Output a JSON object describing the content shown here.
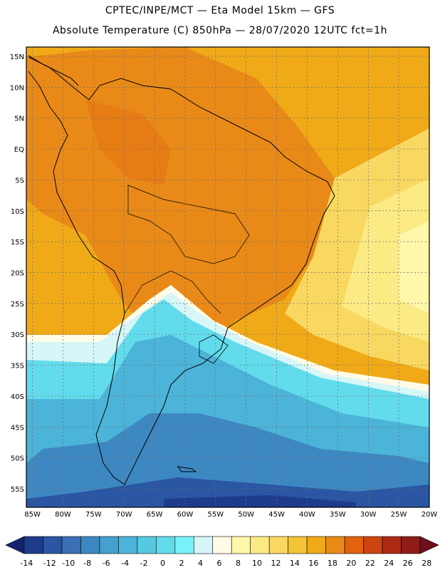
{
  "header": {
    "line1": "CPTEC/INPE/MCT —  Eta Model 15km — GFS",
    "line2": "Absolute Temperature (C) 850hPa — 28/07/2020 12UTC fct=1h"
  },
  "map": {
    "lat_labels": [
      "15N",
      "10N",
      "5N",
      "EQ",
      "5S",
      "10S",
      "15S",
      "20S",
      "25S",
      "30S",
      "35S",
      "40S",
      "45S",
      "50S",
      "55S"
    ],
    "lon_labels": [
      "85W",
      "80W",
      "75W",
      "70W",
      "65W",
      "60W",
      "55W",
      "50W",
      "45W",
      "40W",
      "35W",
      "30W",
      "25W",
      "20W"
    ],
    "lat_values": [
      15,
      10,
      5,
      0,
      -5,
      -10,
      -15,
      -20,
      -25,
      -30,
      -35,
      -40,
      -45,
      -50,
      -55
    ],
    "lon_values": [
      -85,
      -80,
      -75,
      -70,
      -65,
      -60,
      -55,
      -50,
      -45,
      -40,
      -35,
      -30,
      -25,
      -20
    ],
    "lat_range": [
      -58,
      16.5
    ],
    "lon_range": [
      -86,
      -20
    ]
  },
  "colorbar": {
    "labels": [
      "-14",
      "-12",
      "-10",
      "-8",
      "-6",
      "-4",
      "-2",
      "0",
      "2",
      "4",
      "6",
      "8",
      "10",
      "12",
      "14",
      "16",
      "18",
      "20",
      "22",
      "24",
      "26",
      "28"
    ],
    "under_color": "#14236e",
    "over_color": "#6e0f1e",
    "colors": [
      "#1e3c8c",
      "#2a56a3",
      "#3a6fb6",
      "#3e88c2",
      "#44a0cc",
      "#4cb4d8",
      "#56c8e2",
      "#62dcec",
      "#78f2f8",
      "#d6f6f8",
      "#fffbe6",
      "#fff7aa",
      "#fcea84",
      "#f9d862",
      "#f3c438",
      "#f0aa18",
      "#e98a18",
      "#e2620e",
      "#cc4410",
      "#ac2a14",
      "#8e1c18"
    ]
  }
}
